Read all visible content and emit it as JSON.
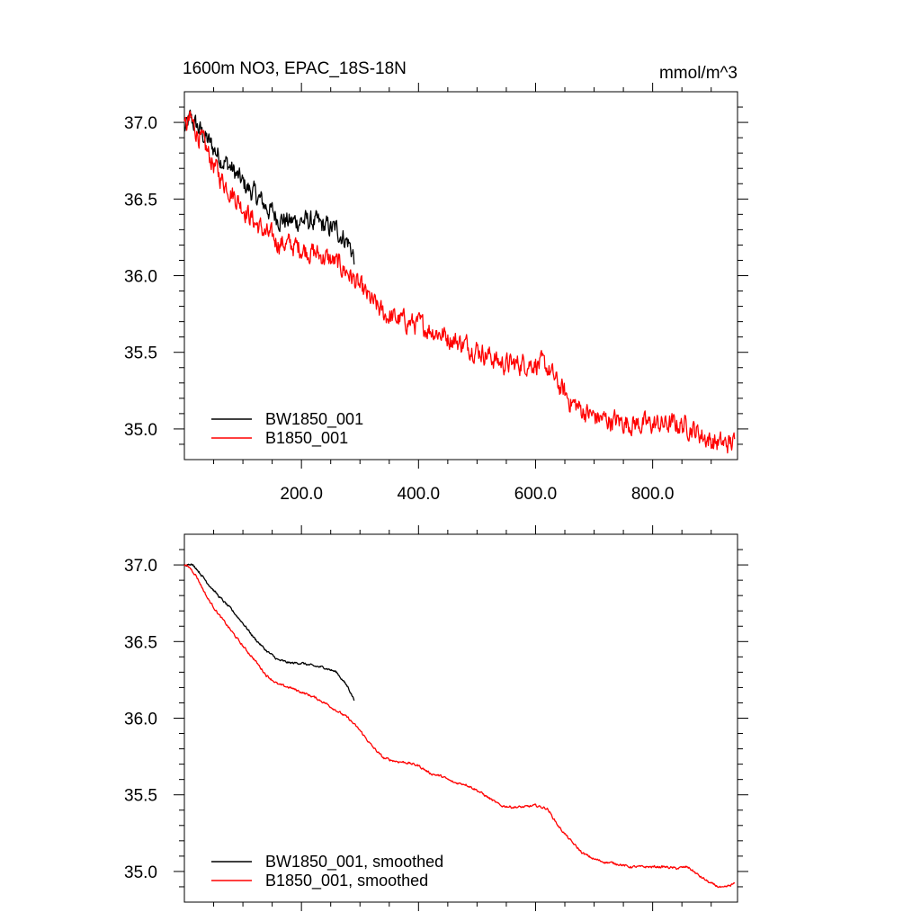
{
  "title_left": "1600m NO3, EPAC_18S-18N",
  "title_right": "mmol/m^3",
  "colors": {
    "BW1850_001": "#000000",
    "B1850_001": "#ff0000",
    "axis": "#000000"
  },
  "chart_data": [
    {
      "type": "line",
      "panel": "top",
      "title": "1600m NO3, EPAC_18S-18N",
      "units": "mmol/m^3",
      "xlim": [
        0,
        945
      ],
      "ylim": [
        34.8,
        37.2
      ],
      "xticks": [
        200,
        400,
        600,
        800
      ],
      "xtick_labels": [
        "200.0",
        "400.0",
        "600.0",
        "800.0"
      ],
      "yticks": [
        35.0,
        35.5,
        36.0,
        36.5,
        37.0
      ],
      "ytick_labels": [
        "35.0",
        "35.5",
        "36.0",
        "36.5",
        "37.0"
      ],
      "legend": [
        "BW1850_001",
        "B1850_001"
      ],
      "legend_position": "bottom-left",
      "series": [
        {
          "name": "BW1850_001",
          "color": "#000000",
          "noise": 0.07,
          "x": [
            0,
            10,
            20,
            40,
            60,
            80,
            100,
            120,
            140,
            160,
            180,
            200,
            220,
            240,
            260,
            280,
            290
          ],
          "y": [
            36.95,
            37.02,
            36.98,
            36.88,
            36.78,
            36.7,
            36.6,
            36.53,
            36.45,
            36.38,
            36.35,
            36.36,
            36.35,
            36.32,
            36.3,
            36.22,
            36.12
          ]
        },
        {
          "name": "B1850_001",
          "color": "#ff0000",
          "noise": 0.07,
          "x": [
            0,
            10,
            20,
            40,
            60,
            80,
            100,
            120,
            140,
            160,
            180,
            200,
            220,
            240,
            260,
            280,
            300,
            320,
            340,
            360,
            380,
            400,
            420,
            440,
            460,
            480,
            500,
            520,
            540,
            560,
            580,
            600,
            620,
            640,
            660,
            680,
            700,
            720,
            740,
            760,
            780,
            800,
            820,
            840,
            860,
            880,
            900,
            920,
            940
          ],
          "y": [
            36.95,
            37.02,
            36.95,
            36.8,
            36.65,
            36.55,
            36.45,
            36.35,
            36.27,
            36.22,
            36.2,
            36.18,
            36.15,
            36.12,
            36.08,
            36.02,
            35.92,
            35.83,
            35.75,
            35.72,
            35.7,
            35.68,
            35.65,
            35.62,
            35.58,
            35.55,
            35.52,
            35.48,
            35.43,
            35.42,
            35.43,
            35.43,
            35.4,
            35.28,
            35.18,
            35.12,
            35.08,
            35.06,
            35.05,
            35.04,
            35.03,
            35.03,
            35.03,
            35.03,
            35.02,
            34.97,
            34.92,
            34.9,
            34.91
          ]
        }
      ]
    },
    {
      "type": "line",
      "panel": "bottom",
      "xlim": [
        0,
        945
      ],
      "ylim": [
        34.8,
        37.2
      ],
      "xticks": [
        200,
        400,
        600,
        800
      ],
      "xtick_labels": [],
      "yticks": [
        35.0,
        35.5,
        36.0,
        36.5,
        37.0
      ],
      "ytick_labels": [
        "35.0",
        "35.5",
        "36.0",
        "36.5",
        "37.0"
      ],
      "legend": [
        "BW1850_001, smoothed",
        "B1850_001, smoothed"
      ],
      "legend_position": "bottom-left",
      "series": [
        {
          "name": "BW1850_001, smoothed",
          "color": "#000000",
          "noise": 0.008,
          "x": [
            0,
            10,
            20,
            40,
            60,
            80,
            100,
            120,
            140,
            160,
            180,
            200,
            220,
            240,
            260,
            280,
            290
          ],
          "y": [
            37.0,
            37.01,
            36.98,
            36.88,
            36.79,
            36.71,
            36.62,
            36.52,
            36.44,
            36.38,
            36.36,
            36.36,
            36.34,
            36.33,
            36.3,
            36.2,
            36.12
          ]
        },
        {
          "name": "B1850_001, smoothed",
          "color": "#ff0000",
          "noise": 0.008,
          "x": [
            0,
            10,
            20,
            40,
            60,
            80,
            100,
            120,
            140,
            160,
            180,
            200,
            220,
            240,
            260,
            280,
            300,
            320,
            340,
            360,
            380,
            400,
            420,
            440,
            460,
            480,
            500,
            520,
            540,
            560,
            580,
            600,
            620,
            640,
            660,
            680,
            700,
            720,
            740,
            760,
            780,
            800,
            820,
            840,
            860,
            880,
            900,
            920,
            940
          ],
          "y": [
            37.0,
            36.98,
            36.93,
            36.78,
            36.67,
            36.57,
            36.47,
            36.38,
            36.28,
            36.22,
            36.2,
            36.17,
            36.14,
            36.1,
            36.05,
            36.0,
            35.92,
            35.82,
            35.74,
            35.72,
            35.71,
            35.69,
            35.64,
            35.62,
            35.58,
            35.57,
            35.53,
            35.48,
            35.43,
            35.42,
            35.42,
            35.43,
            35.41,
            35.29,
            35.2,
            35.12,
            35.08,
            35.06,
            35.05,
            35.03,
            35.03,
            35.03,
            35.03,
            35.02,
            35.03,
            34.97,
            34.92,
            34.89,
            34.92
          ]
        }
      ]
    }
  ]
}
